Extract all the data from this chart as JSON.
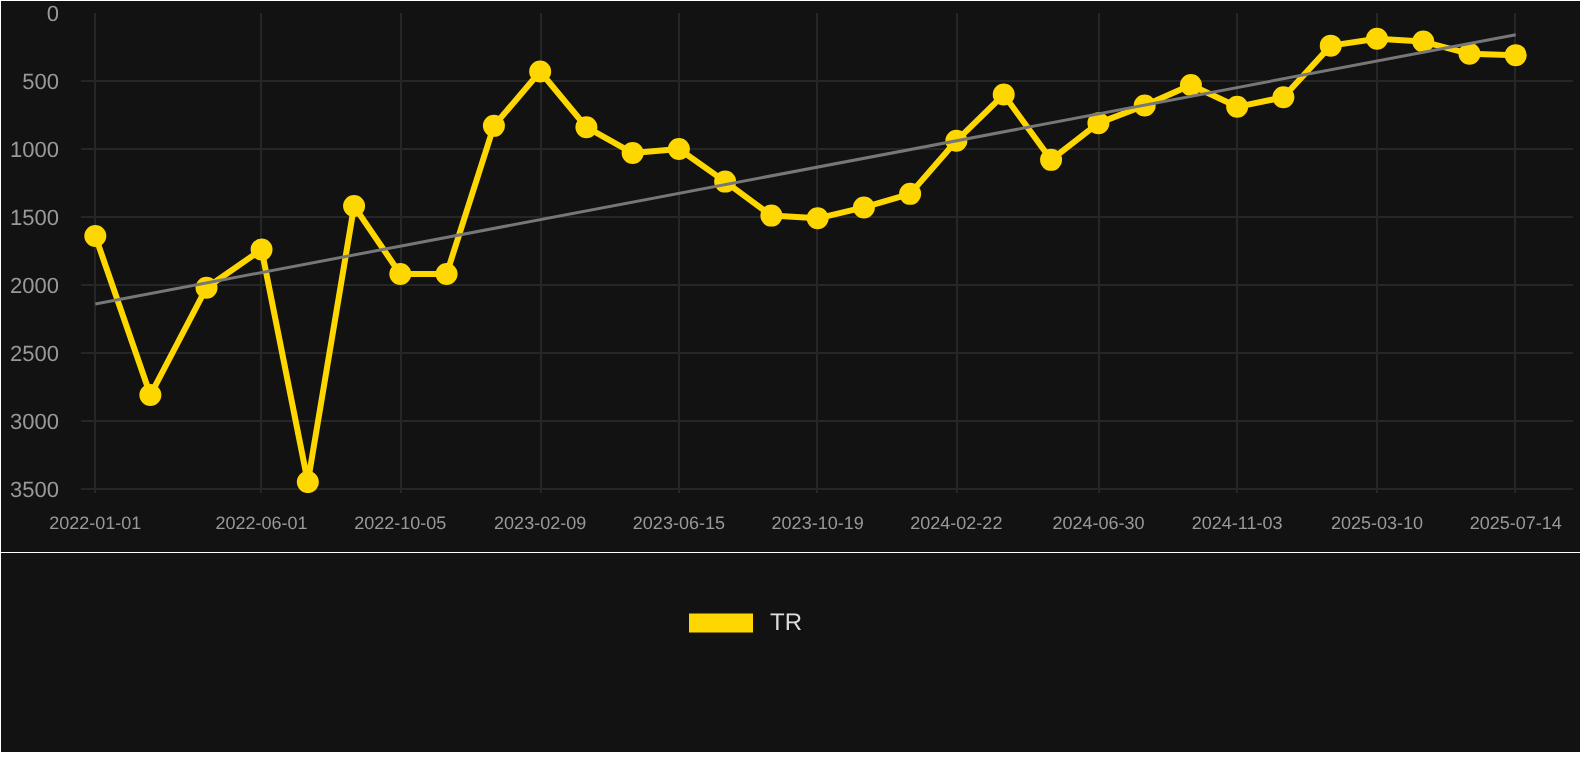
{
  "chart_data": {
    "type": "line",
    "x": [
      "2022-01-01",
      "2022-02-20",
      "2022-04-12",
      "2022-06-01",
      "2022-07-13",
      "2022-08-24",
      "2022-10-05",
      "2022-11-16",
      "2022-12-29",
      "2023-02-09",
      "2023-03-23",
      "2023-05-04",
      "2023-06-15",
      "2023-07-27",
      "2023-09-07",
      "2023-10-19",
      "2023-11-30",
      "2024-01-11",
      "2024-02-22",
      "2024-04-05",
      "2024-05-18",
      "2024-06-30",
      "2024-08-11",
      "2024-09-22",
      "2024-11-03",
      "2024-12-15",
      "2025-01-27",
      "2025-03-10",
      "2025-04-21",
      "2025-06-02",
      "2025-07-14"
    ],
    "series": [
      {
        "name": "TR",
        "color": "#ffd700",
        "marker": "circle",
        "values": [
          1640,
          2810,
          2020,
          1740,
          3450,
          1420,
          1920,
          1920,
          830,
          430,
          840,
          1030,
          1000,
          1240,
          1490,
          1510,
          1430,
          1330,
          940,
          600,
          1080,
          810,
          680,
          530,
          690,
          620,
          240,
          190,
          210,
          300,
          310
        ]
      },
      {
        "type": "line",
        "color": "#777777",
        "marker": "none",
        "x": [
          "2022-01-01",
          "2025-07-14"
        ],
        "values": [
          2140,
          160
        ]
      }
    ],
    "xlim": [
      "2021-12-19",
      "2025-09-04"
    ],
    "ylim": [
      3530,
      0
    ],
    "xticks": [
      "2022-01-01",
      "2022-06-01",
      "2022-10-05",
      "2023-02-09",
      "2023-06-15",
      "2023-10-19",
      "2024-02-22",
      "2024-06-30",
      "2024-11-03",
      "2025-03-10",
      "2025-07-14"
    ],
    "yticks": [
      0,
      500,
      1000,
      1500,
      2000,
      2500,
      3000,
      3500
    ],
    "grid": true,
    "legend": "bottom"
  }
}
